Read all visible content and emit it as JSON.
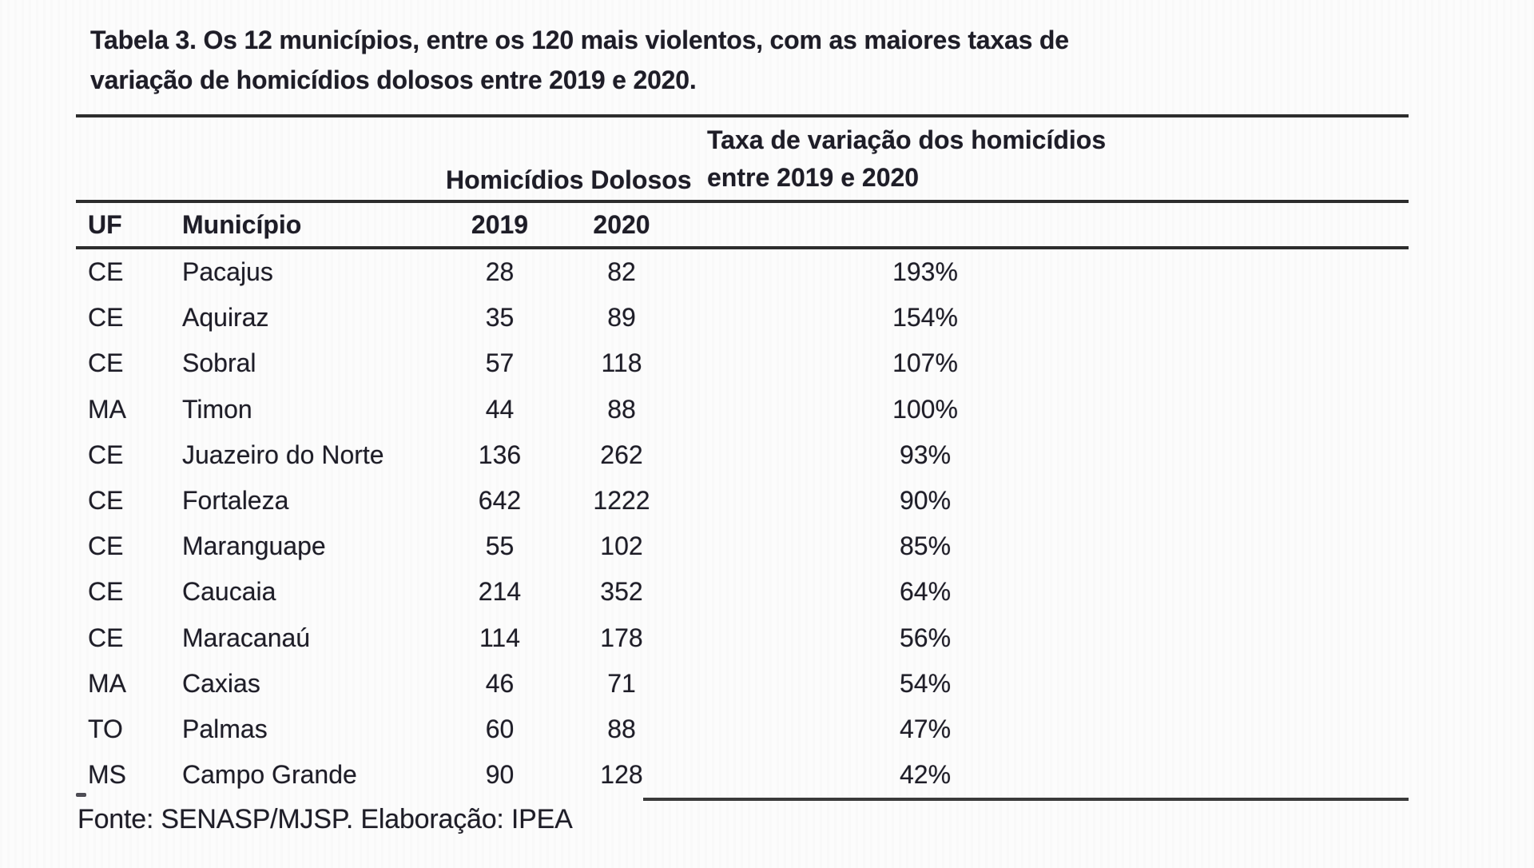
{
  "title": {
    "line1": "Tabela 3. Os 12 municípios, entre os 120 mais violentos, com as maiores taxas de",
    "line2": "variação de homicídios dolosos entre 2019 e 2020."
  },
  "table": {
    "group_headers": {
      "homicidios": "Homicídios Dolosos",
      "taxa_line1": "Taxa de variação dos homicídios",
      "taxa_line2": "entre 2019 e 2020"
    },
    "columns": {
      "uf": "UF",
      "municipio": "Município",
      "y2019": "2019",
      "y2020": "2020"
    },
    "rows": [
      {
        "uf": "CE",
        "municipio": "Pacajus",
        "y2019": "28",
        "y2020": "82",
        "taxa": "193%"
      },
      {
        "uf": "CE",
        "municipio": "Aquiraz",
        "y2019": "35",
        "y2020": "89",
        "taxa": "154%"
      },
      {
        "uf": "CE",
        "municipio": "Sobral",
        "y2019": "57",
        "y2020": "118",
        "taxa": "107%"
      },
      {
        "uf": "MA",
        "municipio": "Timon",
        "y2019": "44",
        "y2020": "88",
        "taxa": "100%"
      },
      {
        "uf": "CE",
        "municipio": "Juazeiro do Norte",
        "y2019": "136",
        "y2020": "262",
        "taxa": "93%"
      },
      {
        "uf": "CE",
        "municipio": "Fortaleza",
        "y2019": "642",
        "y2020": "1222",
        "taxa": "90%"
      },
      {
        "uf": "CE",
        "municipio": "Maranguape",
        "y2019": "55",
        "y2020": "102",
        "taxa": "85%"
      },
      {
        "uf": "CE",
        "municipio": "Caucaia",
        "y2019": "214",
        "y2020": "352",
        "taxa": "64%"
      },
      {
        "uf": "CE",
        "municipio": "Maracanaú",
        "y2019": "114",
        "y2020": "178",
        "taxa": "56%"
      },
      {
        "uf": "MA",
        "municipio": "Caxias",
        "y2019": "46",
        "y2020": "71",
        "taxa": "54%"
      },
      {
        "uf": "TO",
        "municipio": "Palmas",
        "y2019": "60",
        "y2020": "88",
        "taxa": "47%"
      },
      {
        "uf": "MS",
        "municipio": "Campo Grande",
        "y2019": "90",
        "y2020": "128",
        "taxa": "42%"
      }
    ]
  },
  "footer": {
    "source": "Fonte: SENASP/MJSP. Elaboração: IPEA"
  },
  "colors": {
    "text": "#1e1d27",
    "rule": "#2d2d2d",
    "background": "#fcfcfc"
  }
}
